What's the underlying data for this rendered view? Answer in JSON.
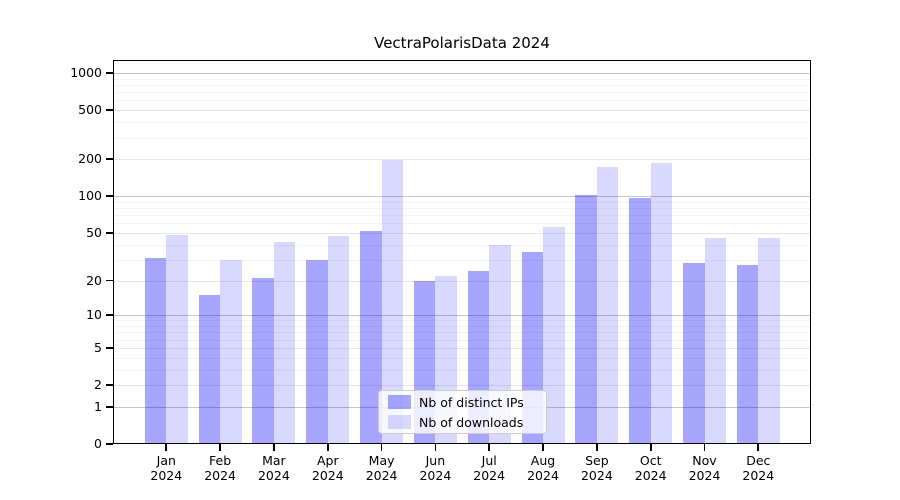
{
  "title": "VectraPolarisData 2024",
  "chart_data": {
    "type": "bar",
    "title": "VectraPolarisData 2024",
    "y_scale": "log1p",
    "grid": true,
    "categories": [
      "Jan",
      "Feb",
      "Mar",
      "Apr",
      "May",
      "Jun",
      "Jul",
      "Aug",
      "Sep",
      "Oct",
      "Nov",
      "Dec"
    ],
    "year_label": "2024",
    "series": [
      {
        "name": "Nb of distinct IPs",
        "color_hex_on_white": "#a6a6ff",
        "css_color": "rgba(0,0,255,0.35)",
        "values": [
          31,
          15,
          21,
          30,
          52,
          20,
          24,
          35,
          103,
          97,
          28,
          27
        ]
      },
      {
        "name": "Nb of downloads",
        "color_hex_on_white": "#d9d9ff",
        "css_color": "rgba(0,0,255,0.15)",
        "values": [
          48,
          30,
          42,
          47,
          199,
          22,
          40,
          56,
          172,
          185,
          45,
          45
        ]
      }
    ],
    "yticks": [
      0,
      1,
      2,
      5,
      10,
      20,
      50,
      100,
      200,
      500,
      1000
    ],
    "minor_yticks": [
      3,
      4,
      6,
      7,
      8,
      9,
      30,
      40,
      60,
      70,
      80,
      90,
      300,
      400,
      600,
      700,
      800,
      900
    ],
    "ylim": [
      0,
      1270
    ],
    "legend_position": "lower center",
    "grid_colors": {
      "decade_major": "#c6c6c6",
      "major": "#e7e7e7",
      "minor": "#f3f3f3"
    }
  }
}
